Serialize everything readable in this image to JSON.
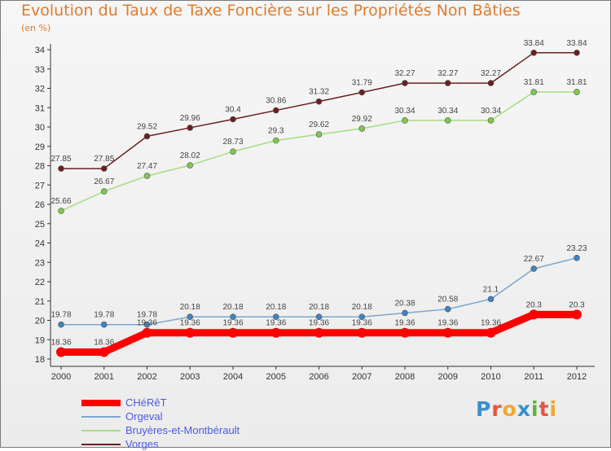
{
  "header": {
    "title": "Evolution du Taux de Taxe Foncière sur les Propriétés Non Bâties",
    "unit": "(en %)"
  },
  "logo": {
    "text": "Proxiti",
    "colors": [
      "#3a8fd0",
      "#e8553b",
      "#f2a72e",
      "#3a8fd0",
      "#5cb33a",
      "#e8553b",
      "#f2a72e"
    ]
  },
  "chart_data": {
    "type": "line",
    "title": "Evolution du Taux de Taxe Foncière sur les Propriétés Non Bâties",
    "ylabel": "(en %)",
    "xlabel": "",
    "categories": [
      "2000",
      "2001",
      "2002",
      "2003",
      "2004",
      "2005",
      "2006",
      "2007",
      "2008",
      "2009",
      "2010",
      "2011",
      "2012"
    ],
    "ylim": [
      17.8,
      34.3
    ],
    "yticks": [
      18,
      19,
      20,
      21,
      22,
      23,
      24,
      25,
      26,
      27,
      28,
      29,
      30,
      31,
      32,
      33,
      34
    ],
    "grid": false,
    "legend_position": "bottom-left",
    "series": [
      {
        "name": "Vorges",
        "color": "#6b1f1f",
        "marker": "#6b1f1f",
        "values": [
          27.85,
          27.85,
          29.52,
          29.96,
          30.4,
          30.86,
          31.32,
          31.79,
          32.27,
          32.27,
          32.27,
          33.84,
          33.84
        ],
        "labels": [
          "27.85",
          "27.85",
          "29.52",
          "29.96",
          "30.4",
          "30.86",
          "31.32",
          "31.79",
          "32.27",
          "32.27",
          "32.27",
          "33.84",
          "33.84"
        ]
      },
      {
        "name": "Bruyères-et-Montbérault",
        "color": "#a6dc83",
        "marker": "#7ec84f",
        "values": [
          25.66,
          26.67,
          27.47,
          28.02,
          28.73,
          29.3,
          29.62,
          29.92,
          30.34,
          30.34,
          30.34,
          31.81,
          31.81
        ],
        "labels": [
          "25.66",
          "26.67",
          "27.47",
          "28.02",
          "28.73",
          "29.3",
          "29.62",
          "29.92",
          "30.34",
          "30.34",
          "30.34",
          "31.81",
          "31.81"
        ]
      },
      {
        "name": "Orgeval",
        "color": "#7ca8d0",
        "marker": "#3f83c0",
        "values": [
          19.78,
          19.78,
          19.78,
          20.18,
          20.18,
          20.18,
          20.18,
          20.18,
          20.38,
          20.58,
          21.1,
          22.67,
          23.23
        ],
        "labels": [
          "19.78",
          "19.78",
          "19.78",
          "20.18",
          "20.18",
          "20.18",
          "20.18",
          "20.18",
          "20.38",
          "20.58",
          "21.1",
          "22.67",
          "23.23"
        ]
      },
      {
        "name": "CHéRêT",
        "color": "#ff0000",
        "marker": "#ff0000",
        "thick": true,
        "values": [
          18.36,
          18.36,
          19.36,
          19.36,
          19.36,
          19.36,
          19.36,
          19.36,
          19.36,
          19.36,
          19.36,
          20.3,
          20.3
        ],
        "labels": [
          "18.36",
          "18.36",
          "19.36",
          "19.36",
          "19.36",
          "19.36",
          "19.36",
          "19.36",
          "19.36",
          "19.36",
          "19.36",
          "20.3",
          "20.3"
        ]
      }
    ]
  },
  "legend": [
    {
      "name": "CHéRêT",
      "color": "#ff0000",
      "thick": true
    },
    {
      "name": "Orgeval",
      "color": "#7ca8d0",
      "thick": false
    },
    {
      "name": "Bruyères-et-Montbérault",
      "color": "#a6dc83",
      "thick": false
    },
    {
      "name": "Vorges",
      "color": "#6b1f1f",
      "thick": false
    }
  ]
}
